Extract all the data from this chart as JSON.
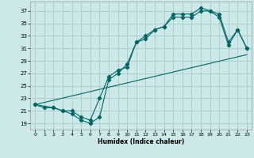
{
  "xlabel": "Humidex (Indice chaleur)",
  "bg_color": "#cce8e8",
  "grid_color": "#aacfcf",
  "line_color": "#006666",
  "xlim": [
    -0.5,
    23.5
  ],
  "ylim": [
    18,
    38.5
  ],
  "yticks": [
    19,
    21,
    23,
    25,
    27,
    29,
    31,
    33,
    35,
    37
  ],
  "xticks": [
    0,
    1,
    2,
    3,
    4,
    5,
    6,
    7,
    8,
    9,
    10,
    11,
    12,
    13,
    14,
    15,
    16,
    17,
    18,
    19,
    20,
    21,
    22,
    23
  ],
  "line1_x": [
    0,
    1,
    2,
    3,
    4,
    5,
    6,
    7,
    8,
    9,
    10,
    11,
    12,
    13,
    14,
    15,
    16,
    17,
    18,
    19,
    20,
    21,
    22,
    23
  ],
  "line1_y": [
    22,
    21.5,
    21.5,
    21,
    21,
    20,
    19.5,
    23,
    26.5,
    27.5,
    28,
    32,
    32.5,
    34,
    34.5,
    36.5,
    36.5,
    36.5,
    37.5,
    37,
    36.5,
    32,
    34,
    31
  ],
  "line2_x": [
    0,
    2,
    3,
    4,
    5,
    6,
    7,
    8,
    9,
    10,
    11,
    12,
    13,
    14,
    15,
    16,
    17,
    18,
    19,
    20,
    21,
    22,
    23
  ],
  "line2_y": [
    22,
    21.5,
    21,
    20.5,
    19.5,
    19,
    20,
    26,
    27,
    28.5,
    32,
    33,
    34,
    34.5,
    36,
    36,
    36,
    37,
    37,
    36,
    31.5,
    34,
    31
  ],
  "line3_x": [
    0,
    23
  ],
  "line3_y": [
    22,
    30
  ]
}
